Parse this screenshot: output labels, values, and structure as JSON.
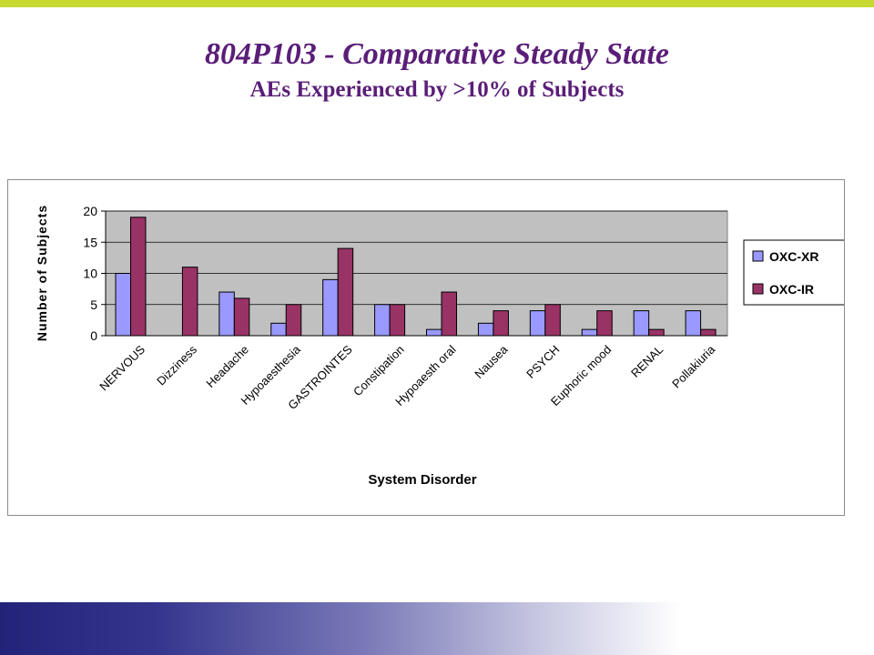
{
  "colors": {
    "top_bar": "#c8d932",
    "title": "#5a1e78",
    "plot_area": "#c0c0c0",
    "series_xr": "#9999ff",
    "series_ir": "#993366",
    "bar_stroke": "#000000"
  },
  "title": {
    "line1": "804P103 - Comparative Steady State",
    "line2": "AEs Experienced by >10% of Subjects"
  },
  "chart_data": {
    "type": "bar",
    "xlabel": "System Disorder",
    "ylabel": "Number of Subjects",
    "ylim": [
      0,
      20
    ],
    "yticks": [
      0,
      5,
      10,
      15,
      20
    ],
    "grid": true,
    "legend_position": "right",
    "categories": [
      "NERVOUS",
      "Dizziness",
      "Headache",
      "Hypoaesthesia",
      "GASTROINTES",
      "Constipation",
      "Hypoaesth oral",
      "Nausea",
      "PSYCH",
      "Euphoric mood",
      "RENAL",
      "Pollakiuria"
    ],
    "series": [
      {
        "name": "OXC-XR",
        "values": [
          10,
          0,
          7,
          2,
          9,
          5,
          1,
          2,
          4,
          1,
          4,
          4
        ]
      },
      {
        "name": "OXC-IR",
        "values": [
          19,
          11,
          6,
          5,
          14,
          5,
          7,
          4,
          5,
          4,
          1,
          1
        ]
      }
    ]
  }
}
